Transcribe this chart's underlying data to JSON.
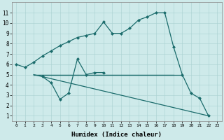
{
  "xlabel": "Humidex (Indice chaleur)",
  "bg_color": "#ceeaea",
  "line_color": "#1a6b6b",
  "curve1_x": [
    0,
    1,
    2,
    3,
    4,
    5,
    6,
    7,
    8,
    9,
    10,
    11,
    12,
    13,
    14,
    15,
    16,
    17,
    18,
    19,
    20,
    21,
    22,
    23
  ],
  "curve1_y": [
    6,
    5.7,
    6.2,
    6.8,
    7.3,
    7.8,
    8.2,
    8.6,
    8.8,
    9.0,
    10.1,
    9.0,
    9.0,
    9.5,
    10.3,
    10.6,
    11.0,
    11.0,
    7.7,
    5.0,
    3.2,
    2.7,
    1.0,
    null
  ],
  "curve2_x": [
    3,
    4,
    5,
    6,
    7,
    8,
    9,
    10
  ],
  "curve2_y": [
    4.8,
    4.2,
    2.6,
    3.2,
    6.5,
    5.0,
    5.2,
    5.2
  ],
  "flat_line_x": [
    2,
    19
  ],
  "flat_line_y": [
    5,
    5
  ],
  "flat_line2_x": [
    2,
    18
  ],
  "flat_line2_y": [
    5,
    5
  ],
  "diag_line_x": [
    2,
    22
  ],
  "diag_line_y": [
    5.0,
    1.0
  ],
  "ylim": [
    0.5,
    12
  ],
  "xlim": [
    -0.5,
    23.5
  ],
  "yticks": [
    1,
    2,
    3,
    4,
    5,
    6,
    7,
    8,
    9,
    10,
    11
  ],
  "xticks": [
    0,
    1,
    2,
    3,
    4,
    5,
    6,
    7,
    8,
    9,
    10,
    11,
    12,
    13,
    14,
    15,
    16,
    17,
    18,
    19,
    20,
    21,
    22,
    23
  ]
}
